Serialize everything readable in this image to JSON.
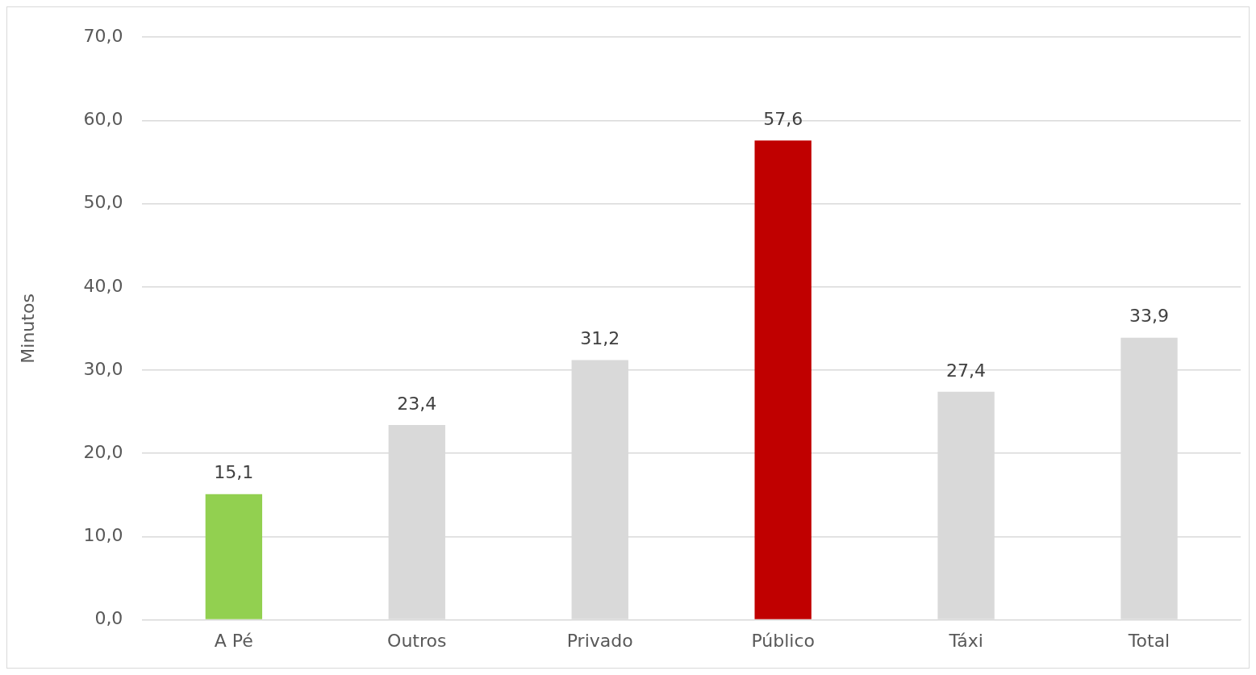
{
  "chart_data": {
    "type": "bar",
    "ylabel": "Minutos",
    "categories": [
      "A Pé",
      "Outros",
      "Privado",
      "Público",
      "Táxi",
      "Total"
    ],
    "values": [
      15.1,
      23.4,
      31.2,
      57.6,
      27.4,
      33.9
    ],
    "colors": [
      "#92d050",
      "#d9d9d9",
      "#d9d9d9",
      "#c00000",
      "#d9d9d9",
      "#d9d9d9"
    ],
    "value_labels": [
      "15,1",
      "23,4",
      "31,2",
      "57,6",
      "27,4",
      "33,9"
    ],
    "ylim": [
      0,
      70
    ],
    "yticks": [
      {
        "value": 0,
        "label": "0,0"
      },
      {
        "value": 10,
        "label": "10,0"
      },
      {
        "value": 20,
        "label": "20,0"
      },
      {
        "value": 30,
        "label": "30,0"
      },
      {
        "value": 40,
        "label": "40,0"
      },
      {
        "value": 50,
        "label": "50,0"
      },
      {
        "value": 60,
        "label": "60,0"
      },
      {
        "value": 70,
        "label": "70,0"
      }
    ],
    "grid": "y",
    "legend": false
  }
}
